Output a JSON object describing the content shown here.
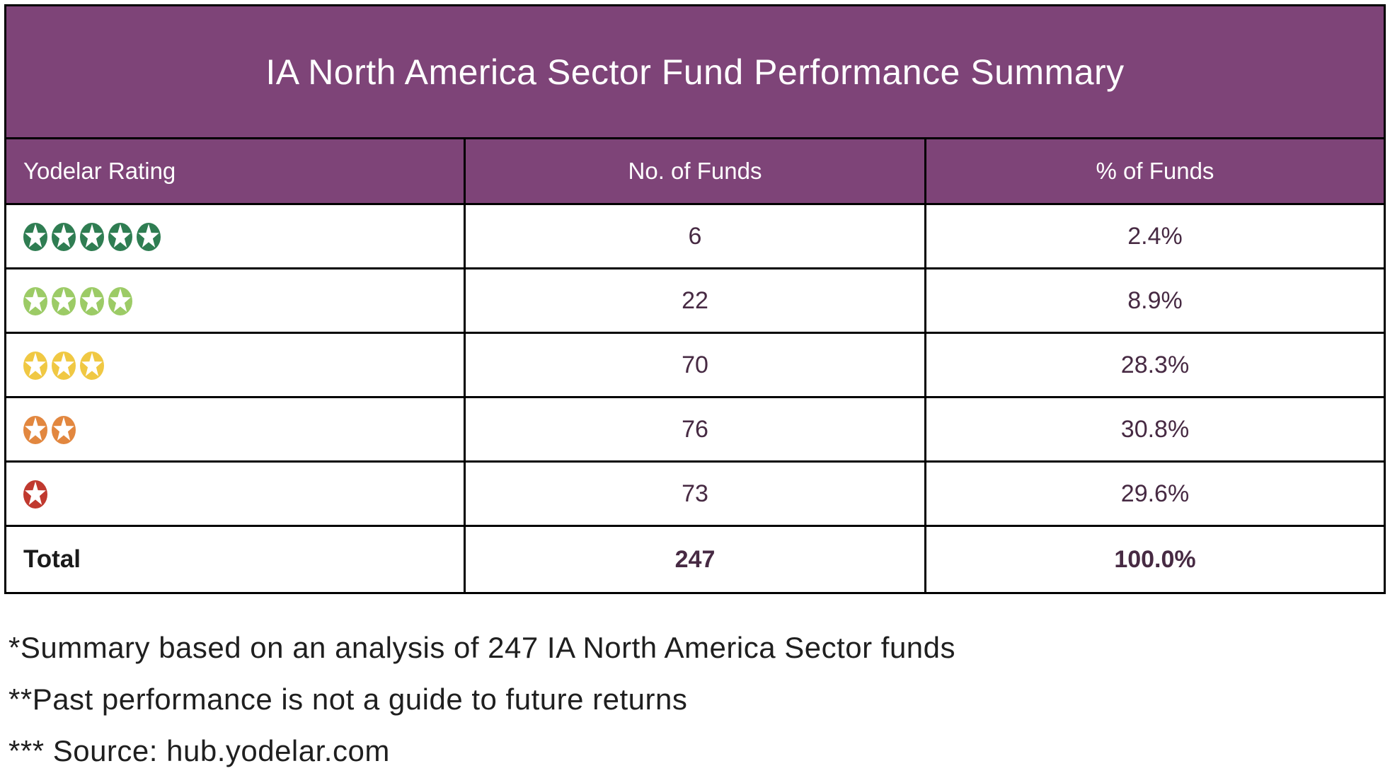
{
  "table": {
    "title": "IA North America Sector Fund Performance Summary",
    "columns": [
      "Yodelar Rating",
      "No. of Funds",
      "% of Funds"
    ],
    "rows": [
      {
        "rating_stars": 5,
        "rating_label": "5 star rating",
        "star_color": "#2F7D52",
        "funds": "6",
        "pct": "2.4%"
      },
      {
        "rating_stars": 4,
        "rating_label": "4 star rating",
        "star_color": "#9CCB66",
        "funds": "22",
        "pct": "8.9%"
      },
      {
        "rating_stars": 3,
        "rating_label": "3 star rating",
        "star_color": "#F0C843",
        "funds": "70",
        "pct": "28.3%"
      },
      {
        "rating_stars": 2,
        "rating_label": "2 star rating",
        "star_color": "#E2873F",
        "funds": "76",
        "pct": "30.8%"
      },
      {
        "rating_stars": 1,
        "rating_label": "1 star rating",
        "star_color": "#C0392F",
        "funds": "73",
        "pct": "29.6%"
      }
    ],
    "total": {
      "label": "Total",
      "funds": "247",
      "pct": "100.0%"
    }
  },
  "footnotes": [
    "*Summary based on an analysis of 247 IA North America Sector funds",
    "**Past performance is not a guide to future returns",
    "*** Source: hub.yodelar.com"
  ],
  "colors": {
    "header_background": "#7E4478",
    "cell_text": "#472A43",
    "border": "#000000",
    "star_5": "#2F7D52",
    "star_4": "#9CCB66",
    "star_3": "#F0C843",
    "star_2": "#E2873F",
    "star_1": "#C0392F"
  },
  "chart_data": {
    "type": "table",
    "title": "IA North America Sector Fund Performance Summary",
    "columns": [
      "Yodelar Rating",
      "No. of Funds",
      "% of Funds"
    ],
    "rows": [
      [
        "5 stars",
        6,
        "2.4%"
      ],
      [
        "4 stars",
        22,
        "8.9%"
      ],
      [
        "3 stars",
        70,
        "28.3%"
      ],
      [
        "2 stars",
        76,
        "30.8%"
      ],
      [
        "1 star",
        73,
        "29.6%"
      ],
      [
        "Total",
        247,
        "100.0%"
      ]
    ]
  }
}
